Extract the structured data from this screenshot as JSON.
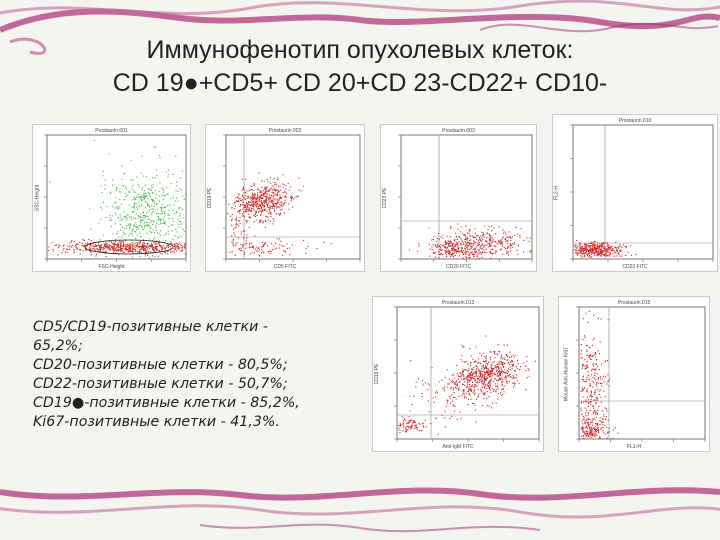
{
  "slide": {
    "title_line1": "Иммунофенотип опухолевых клеток:",
    "title_line2": "CD 19●+CD5+ CD 20+CD 23-CD22+ CD10-"
  },
  "plots": [
    {
      "header": "Prostaurin.001",
      "x_label": "FSC-Height",
      "y_label": "SSC-Height",
      "type": "scatter-fsc"
    },
    {
      "header": "Prostaurin.002",
      "x_label": "CD5 FITC",
      "y_label": "CD19 PE",
      "type": "dot-quadrant"
    },
    {
      "header": "Prostaurin.003",
      "x_label": "CD20 FITC",
      "y_label": "CD23 PE",
      "type": "dot-quadrant"
    },
    {
      "header": "Prostaurin.010",
      "x_label": "CD22 FITC",
      "y_label": "FL2-H",
      "type": "dot-quadrant"
    },
    {
      "header": "Prostaurin.013",
      "x_label": "Anti-IgM FITC",
      "y_label": "CD19 PE",
      "type": "dot-quadrant"
    },
    {
      "header": "Prostaurin.015",
      "x_label": "FL1-H",
      "y_label": "Mouse Anti-Human Ki67",
      "type": "dot-quadrant"
    }
  ],
  "stats": [
    "CD5/CD19-позитивные клетки -",
    "65,2%;",
    "CD20-позитивные клетки - 80,5%;",
    "CD22-позитивные клетки - 50,7%;",
    "CD19●-позитивные клетки - 85,2%,",
    "Ki67-позитивные клетки - 41,3%."
  ],
  "colors": {
    "dots_red": "#d42020",
    "dots_green": "#3dbb3d",
    "background": "#f4f4f1",
    "decoration": "#b23a7a"
  }
}
